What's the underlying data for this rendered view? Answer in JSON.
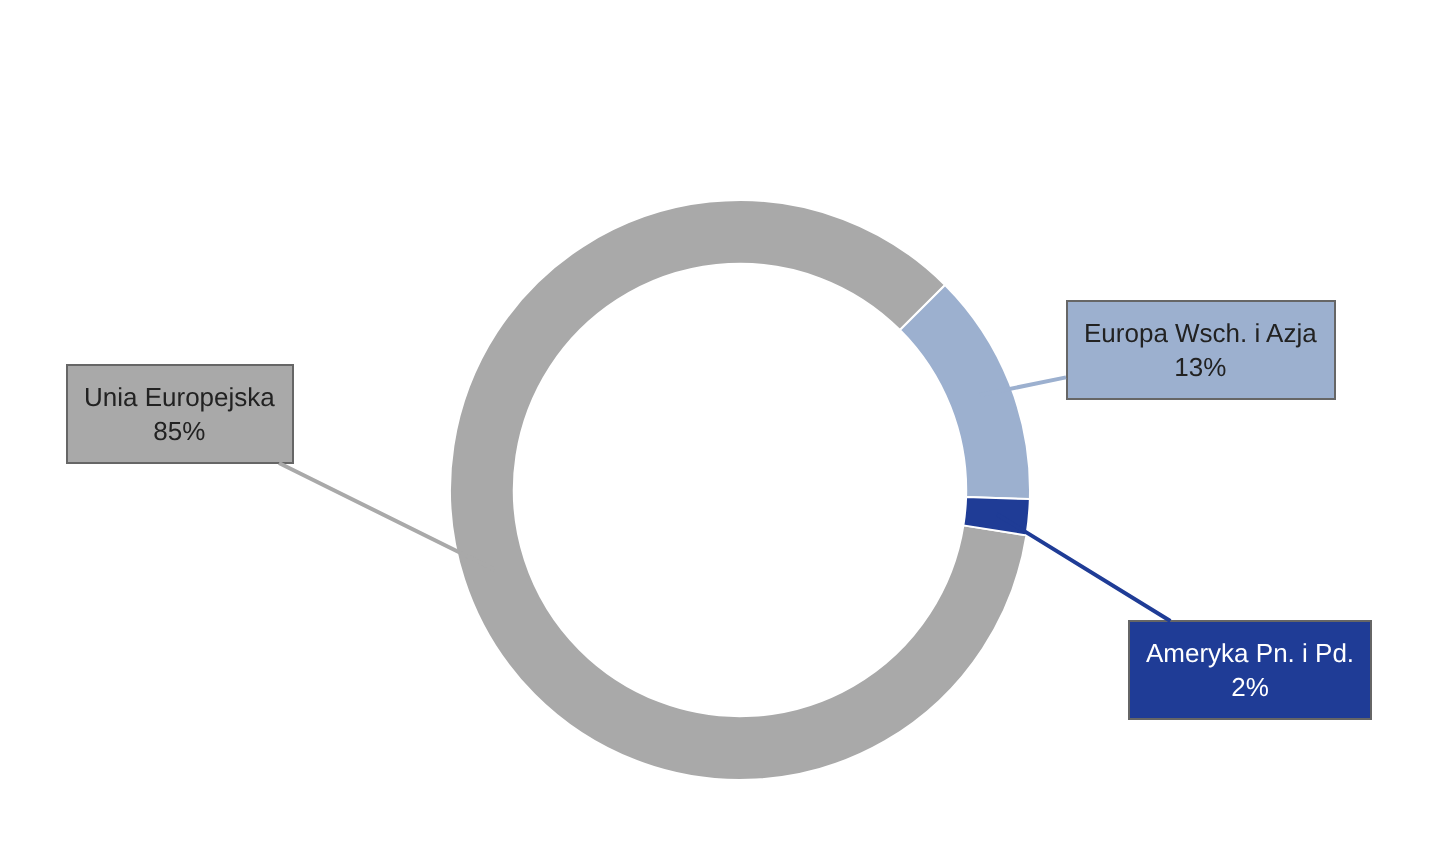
{
  "chart_data": {
    "type": "donut",
    "categories": [
      "Unia Europejska",
      "Europa Wsch. i Azja",
      "Ameryka Pn. i Pd."
    ],
    "values": [
      85,
      13,
      2
    ],
    "value_labels": [
      "85%",
      "13%",
      "2%"
    ],
    "colors": [
      "#a9a9a9",
      "#9cb0cf",
      "#1f3c96"
    ],
    "legend": false
  }
}
